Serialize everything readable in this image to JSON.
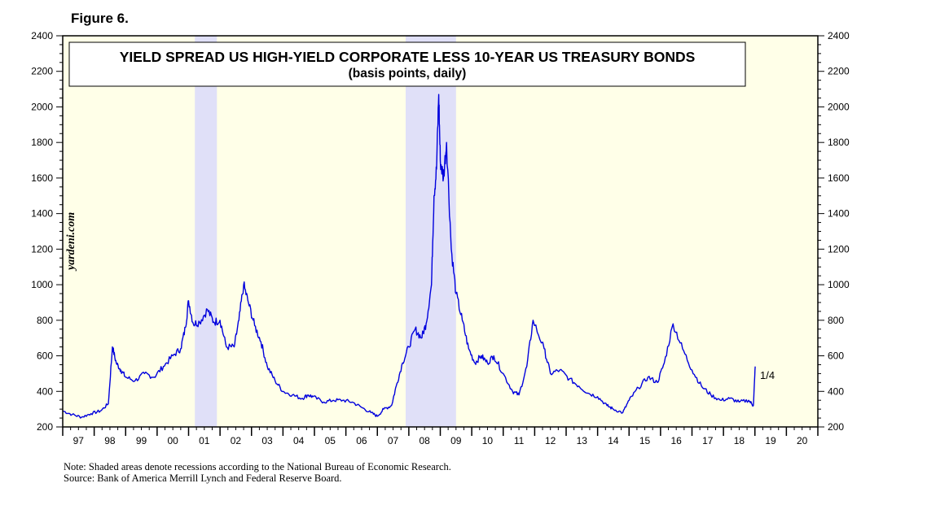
{
  "figure_label": "Figure 6.",
  "watermark": "yardeni.com",
  "notes": {
    "note": "Note: Shaded areas denote recessions according to the National Bureau of Economic Research.",
    "source": "Source: Bank of America Merrill Lynch and Federal Reserve Board."
  },
  "colors": {
    "background": "#ffffe8",
    "recession": "#e0e0f8",
    "line": "#0000dd"
  },
  "chart_data": {
    "type": "line",
    "title": "YIELD SPREAD US HIGH-YIELD CORPORATE LESS 10-YEAR US TREASURY BONDS",
    "subtitle": "(basis points, daily)",
    "xlabel": "",
    "ylabel": "",
    "ylim": [
      200,
      2400
    ],
    "xlim": [
      1997,
      2021
    ],
    "y_ticks": [
      "200",
      "400",
      "600",
      "800",
      "1000",
      "1200",
      "1400",
      "1600",
      "1800",
      "2000",
      "2200",
      "2400"
    ],
    "x_ticks": [
      "97",
      "98",
      "99",
      "00",
      "01",
      "02",
      "03",
      "04",
      "05",
      "06",
      "07",
      "08",
      "09",
      "10",
      "11",
      "12",
      "13",
      "14",
      "15",
      "16",
      "17",
      "18",
      "19",
      "20"
    ],
    "recessions": [
      [
        2001.2,
        2001.9
      ],
      [
        2007.9,
        2009.5
      ]
    ],
    "last_value_label": "1/4",
    "grid": false,
    "series": [
      {
        "x": [
          1997.0,
          1997.3,
          1997.6,
          1997.9,
          1998.2,
          1998.45,
          1998.58,
          1998.7,
          1998.85,
          1999.0,
          1999.3,
          1999.6,
          1999.9,
          2000.2,
          2000.5,
          2000.75,
          2000.9,
          2001.0,
          2001.15,
          2001.35,
          2001.6,
          2001.8,
          2002.0,
          2002.2,
          2002.45,
          2002.6,
          2002.75,
          2002.9,
          2003.1,
          2003.3,
          2003.5,
          2003.75,
          2004.0,
          2004.3,
          2004.6,
          2004.8,
          2004.95,
          2005.3,
          2005.6,
          2005.9,
          2006.2,
          2006.5,
          2006.8,
          2007.0,
          2007.2,
          2007.45,
          2007.6,
          2007.8,
          2008.0,
          2008.2,
          2008.4,
          2008.55,
          2008.72,
          2008.8,
          2008.88,
          2008.95,
          2009.0,
          2009.1,
          2009.2,
          2009.35,
          2009.5,
          2009.7,
          2009.9,
          2010.1,
          2010.3,
          2010.5,
          2010.7,
          2011.0,
          2011.3,
          2011.5,
          2011.75,
          2011.95,
          2012.3,
          2012.5,
          2012.8,
          2013.1,
          2013.4,
          2013.7,
          2014.0,
          2014.3,
          2014.5,
          2014.8,
          2015.0,
          2015.3,
          2015.6,
          2015.9,
          2016.12,
          2016.4,
          2016.7,
          2017.0,
          2017.3,
          2017.6,
          2017.9,
          2018.2,
          2018.5,
          2018.8,
          2018.95,
          2019.01
        ],
        "values": [
          290,
          270,
          255,
          275,
          290,
          330,
          650,
          560,
          520,
          480,
          460,
          500,
          480,
          540,
          600,
          640,
          760,
          910,
          780,
          790,
          860,
          790,
          800,
          650,
          650,
          800,
          1000,
          900,
          770,
          680,
          540,
          460,
          400,
          380,
          360,
          380,
          370,
          340,
          350,
          350,
          340,
          310,
          280,
          260,
          300,
          320,
          430,
          560,
          650,
          750,
          700,
          780,
          1000,
          1500,
          1650,
          2070,
          1700,
          1600,
          1800,
          1200,
          950,
          800,
          640,
          560,
          600,
          560,
          600,
          500,
          400,
          380,
          540,
          800,
          640,
          500,
          520,
          470,
          430,
          390,
          370,
          320,
          300,
          280,
          350,
          420,
          480,
          450,
          560,
          780,
          640,
          520,
          430,
          380,
          350,
          360,
          340,
          350,
          320,
          540
        ]
      }
    ]
  }
}
